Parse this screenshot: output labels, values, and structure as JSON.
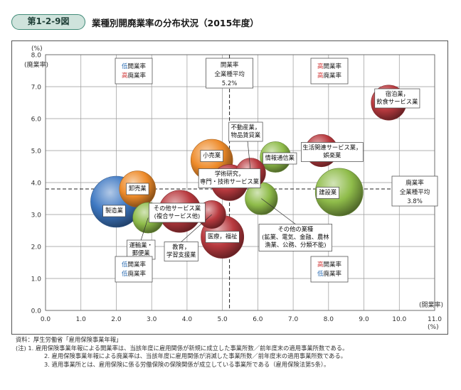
{
  "figure": {
    "label": "第1-2-9図",
    "title": "業種別開廃業率の分布状況（2015年度）"
  },
  "chart_data": {
    "type": "bubble",
    "x_axis": {
      "label": "(開業率)",
      "unit": "(%)",
      "min": 0,
      "max": 11,
      "ticks": [
        "0.0",
        "1.0",
        "2.0",
        "3.0",
        "4.0",
        "5.0",
        "6.0",
        "7.0",
        "8.0",
        "9.0",
        "10.0",
        "11.0"
      ]
    },
    "y_axis": {
      "label": "(廃業率)",
      "unit": "(%)",
      "min": 0,
      "max": 8,
      "ticks": [
        "0.0",
        "1.0",
        "2.0",
        "3.0",
        "4.0",
        "5.0",
        "6.0",
        "7.0",
        "8.0"
      ]
    },
    "grid": true,
    "reference_lines": [
      {
        "axis": "x",
        "value": 5.2,
        "label_lines": [
          "開業率",
          "全業種平均",
          "5.2%"
        ]
      },
      {
        "axis": "y",
        "value": 3.8,
        "label_lines": [
          "廃業率",
          "全業種平均",
          "3.8%"
        ]
      }
    ],
    "quadrant_labels": [
      {
        "position": "top-left",
        "line1": "低開業率",
        "line2": "高廃業率"
      },
      {
        "position": "top-right",
        "line1": "高開業率",
        "line2": "高廃業率"
      },
      {
        "position": "bottom-left",
        "line1": "低開業率",
        "line2": "低廃業率"
      },
      {
        "position": "bottom-right",
        "line1": "高開業率",
        "line2": "低廃業率"
      }
    ],
    "bubbles": [
      {
        "label_lines": [
          "製造業"
        ],
        "x": 2.0,
        "y": 3.4,
        "size": 1.0,
        "color": "#3e78c2"
      },
      {
        "label_lines": [
          "卸売業"
        ],
        "x": 2.6,
        "y": 3.8,
        "size": 0.5,
        "color": "#ee8b2a"
      },
      {
        "label_lines": [
          "運輸業・",
          "郵便業"
        ],
        "x": 2.9,
        "y": 2.9,
        "size": 0.36,
        "color": "#8fbc4a"
      },
      {
        "label_lines": [
          "その他サービス業",
          "(複合サービス他)"
        ],
        "x": 3.8,
        "y": 3.1,
        "size": 0.68,
        "color": "#b93a3f"
      },
      {
        "label_lines": [
          "教育，",
          "学習支援業"
        ],
        "x": 4.7,
        "y": 3.0,
        "size": 0.3,
        "color": "#b93a3f"
      },
      {
        "label_lines": [
          "小売業"
        ],
        "x": 4.7,
        "y": 4.7,
        "size": 0.67,
        "color": "#ee8b2a"
      },
      {
        "label_lines": [
          "学術研究，",
          "専門・技術サービス業"
        ],
        "x": 5.2,
        "y": 4.0,
        "size": 0.5,
        "color": "#b93a3f"
      },
      {
        "label_lines": [
          "不動産業，",
          "物品賃貸業"
        ],
        "x": 5.8,
        "y": 4.3,
        "size": 0.34,
        "color": "#b93a3f"
      },
      {
        "label_lines": [
          "医療，福祉"
        ],
        "x": 5.0,
        "y": 2.3,
        "size": 0.7,
        "color": "#b93a3f"
      },
      {
        "label_lines": [
          "情報通信業"
        ],
        "x": 6.5,
        "y": 4.8,
        "size": 0.36,
        "color": "#8fbc4a"
      },
      {
        "label_lines": [
          "その他の業種",
          "(鉱業、電気、金融、農林",
          "漁業、公務、分類不能)"
        ],
        "x": 6.1,
        "y": 3.5,
        "size": 0.4,
        "color": "#8fbc4a"
      },
      {
        "label_lines": [
          "生活関連サービス業，",
          "娯楽業"
        ],
        "x": 7.8,
        "y": 5.0,
        "size": 0.4,
        "color": "#b93a3f"
      },
      {
        "label_lines": [
          "建設業"
        ],
        "x": 8.3,
        "y": 3.7,
        "size": 0.87,
        "color": "#8fbc4a"
      },
      {
        "label_lines": [
          "宿泊業，",
          "飲食サービス業"
        ],
        "x": 9.7,
        "y": 6.5,
        "size": 0.47,
        "color": "#b93a3f"
      }
    ]
  },
  "notes": [
    "資料：厚生労働省「雇用保険事業年報」",
    "(注) 1. 雇用保険事業年報による開業率は、当該年度に雇用関係が新規に成立した事業所数／前年度末の適用事業所数である。",
    "2. 雇用保険事業年報による廃業率は、当該年度に雇用関係が消滅した事業所数／前年度末の適用事業所数である。",
    "3. 適用事業所とは、雇用保険に係る労働保険の保険関係が成立している事業所である（雇用保険法第5条）。"
  ],
  "colors": {
    "quadrant_low": "#2f6fb4",
    "quadrant_high": "#d03a3a",
    "badge_fill": "#cfe3dc",
    "badge_border": "#3f8a77"
  }
}
